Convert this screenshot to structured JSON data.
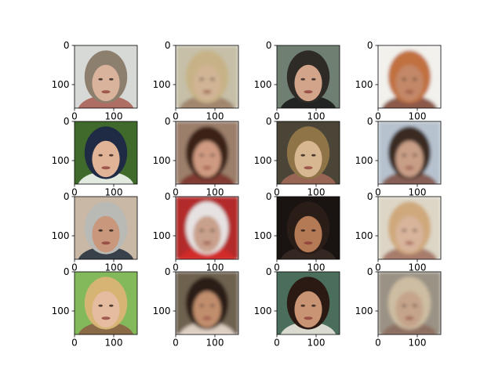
{
  "chart_data": {
    "type": "image_grid",
    "rows": 4,
    "cols": 4,
    "image_extent": {
      "x": [
        0,
        160
      ],
      "y": [
        0,
        160
      ]
    },
    "xticks": [
      0,
      100
    ],
    "yticks": [
      0,
      100
    ],
    "xtick_labels": [
      "0",
      "100"
    ],
    "ytick_labels": [
      "0",
      "100"
    ],
    "xticks_visible_on_all_panels": true,
    "grid": false,
    "panels": [
      {
        "row": 0,
        "col": 0,
        "kind": "original",
        "subject": "woman with tousled blonde hair",
        "colors": {
          "bg": "#d7d9d6",
          "hair": "#8d7f6e",
          "skin": "#d9b39c",
          "accent": "#a85b50"
        }
      },
      {
        "row": 0,
        "col": 1,
        "kind": "reconstruction",
        "subject": "blurry blonde face",
        "colors": {
          "bg": "#c6c0a8",
          "hair": "#c7b287",
          "skin": "#d0b494",
          "accent": "#9a7b64"
        }
      },
      {
        "row": 0,
        "col": 2,
        "kind": "original",
        "subject": "man with dark hair and sunglasses",
        "colors": {
          "bg": "#6f7f72",
          "hair": "#2e2a26",
          "skin": "#d2a48a",
          "accent": "#141414"
        }
      },
      {
        "row": 0,
        "col": 3,
        "kind": "reconstruction",
        "subject": "smiling woman with red-orange hair",
        "colors": {
          "bg": "#f2f1ec",
          "hair": "#c1713f",
          "skin": "#c28868",
          "accent": "#7a3d2b"
        }
      },
      {
        "row": 1,
        "col": 0,
        "kind": "original",
        "subject": "woman wearing navy cap",
        "colors": {
          "bg": "#3f6a2c",
          "hair": "#1f2a44",
          "skin": "#e1b397",
          "accent": "#ffffff"
        }
      },
      {
        "row": 1,
        "col": 1,
        "kind": "reconstruction",
        "subject": "face with dark curly hair",
        "colors": {
          "bg": "#9c7f6a",
          "hair": "#3a2119",
          "skin": "#cf9a80",
          "accent": "#7a2f26"
        }
      },
      {
        "row": 1,
        "col": 2,
        "kind": "original",
        "subject": "woman with light brown hair",
        "colors": {
          "bg": "#4b4537",
          "hair": "#8f7448",
          "skin": "#d7b692",
          "accent": "#a66b5a"
        }
      },
      {
        "row": 1,
        "col": 3,
        "kind": "reconstruction",
        "subject": "man with dark hair",
        "colors": {
          "bg": "#b7c2cf",
          "hair": "#3a2a24",
          "skin": "#c89e86",
          "accent": "#7d4c3f"
        }
      },
      {
        "row": 2,
        "col": 0,
        "kind": "original",
        "subject": "gray-haired man in suit",
        "colors": {
          "bg": "#c9b8a6",
          "hair": "#b9b9b5",
          "skin": "#c8977c",
          "accent": "#1f2a3a"
        }
      },
      {
        "row": 2,
        "col": 1,
        "kind": "reconstruction",
        "subject": "blurry face in red cap",
        "colors": {
          "bg": "#b32b2b",
          "hair": "#e6e2e2",
          "skin": "#c9a08c",
          "accent": "#d82b2b"
        }
      },
      {
        "row": 2,
        "col": 2,
        "kind": "original",
        "subject": "man with mustache on dark background",
        "colors": {
          "bg": "#191412",
          "hair": "#2a1d17",
          "skin": "#b47a55",
          "accent": "#3a2a24"
        }
      },
      {
        "row": 2,
        "col": 3,
        "kind": "reconstruction",
        "subject": "blurry blonde curly hair",
        "colors": {
          "bg": "#ddd6c6",
          "hair": "#cfa97b",
          "skin": "#d8b49b",
          "accent": "#9d6b5b"
        }
      },
      {
        "row": 3,
        "col": 0,
        "kind": "original",
        "subject": "blonde woman, green background",
        "colors": {
          "bg": "#83b95a",
          "hair": "#d6b574",
          "skin": "#e5bca0",
          "accent": "#8c5a44"
        }
      },
      {
        "row": 3,
        "col": 1,
        "kind": "reconstruction",
        "subject": "smiling dark-haired woman",
        "colors": {
          "bg": "#6e6250",
          "hair": "#2b1b14",
          "skin": "#c18e6d",
          "accent": "#f1e3d6"
        }
      },
      {
        "row": 3,
        "col": 2,
        "kind": "original",
        "subject": "smiling woman with long dark hair",
        "colors": {
          "bg": "#4a6e5b",
          "hair": "#2b1a13",
          "skin": "#c99473",
          "accent": "#f4ede6"
        }
      },
      {
        "row": 3,
        "col": 3,
        "kind": "reconstruction",
        "subject": "blurry light-haired face",
        "colors": {
          "bg": "#9a9385",
          "hair": "#cdbda2",
          "skin": "#c5a48b",
          "accent": "#8c6a5c"
        }
      }
    ]
  }
}
